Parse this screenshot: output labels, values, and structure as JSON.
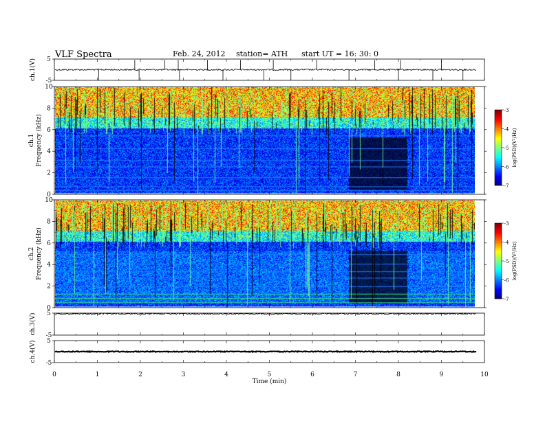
{
  "header": {
    "title": "VLF  Spectra",
    "date": "Feb. 24, 2012",
    "station": "station= ATH",
    "start": "start  UT =   16: 30: 0"
  },
  "chart_data": [
    {
      "type": "line",
      "name": "ch1 waveform",
      "ylabel": "ch.1(V)",
      "ylim": [
        -5,
        5
      ],
      "yticks": [
        "5",
        "-5"
      ],
      "baseline": 0.0,
      "spikes_down_at_min": [
        1.03,
        1.97,
        2.91,
        3.92,
        4.87,
        5.5,
        6.85,
        8.0,
        8.8,
        9.5
      ],
      "spikes_up_at_min": [
        1.87,
        2.57,
        2.88,
        3.56,
        4.33,
        5.09,
        6.1,
        7.45,
        8.05,
        9.0
      ]
    },
    {
      "type": "heatmap",
      "name": "ch1 spectrogram",
      "ylabel": "ch.1\nFrequency (kHz)",
      "ylabel_line1": "ch.1",
      "ylabel_line2": "Frequency (kHz)",
      "ylim": [
        0,
        10
      ],
      "yticks": [
        "0",
        "2",
        "4",
        "6",
        "8",
        "10"
      ],
      "xlim_min": [
        0,
        9.8
      ],
      "colorbar": {
        "label": "log(PSD)(V²/Hz)",
        "ticks": [
          "-3",
          "-4",
          "-5",
          "-6",
          "-7"
        ]
      }
    },
    {
      "type": "heatmap",
      "name": "ch2 spectrogram",
      "ylabel_line1": "ch.2",
      "ylabel_line2": "Frequency (kHz)",
      "ylim": [
        0,
        10
      ],
      "yticks": [
        "0",
        "2",
        "4",
        "6",
        "8",
        "10"
      ],
      "xlim_min": [
        0,
        9.8
      ],
      "colorbar": {
        "label": "log(PSD)(V²/Hz)",
        "ticks": [
          "-3",
          "-4",
          "-5",
          "-6",
          "-7"
        ]
      }
    },
    {
      "type": "line",
      "name": "ch3 waveform",
      "ylabel": "ch.3(V)",
      "ylim": [
        -5,
        5
      ],
      "yticks": [
        "5",
        "-5"
      ],
      "baseline": 4.7
    },
    {
      "type": "line",
      "name": "ch4 waveform",
      "ylabel": "ch.4(V)",
      "ylim": [
        -5,
        5
      ],
      "yticks": [
        "5",
        "-5"
      ],
      "baseline": 0.0
    }
  ],
  "xaxis": {
    "label": "Time  (min)",
    "range": [
      0,
      10
    ],
    "ticks": [
      "0",
      "1",
      "2",
      "3",
      "4",
      "5",
      "6",
      "7",
      "8",
      "9",
      "10"
    ]
  }
}
